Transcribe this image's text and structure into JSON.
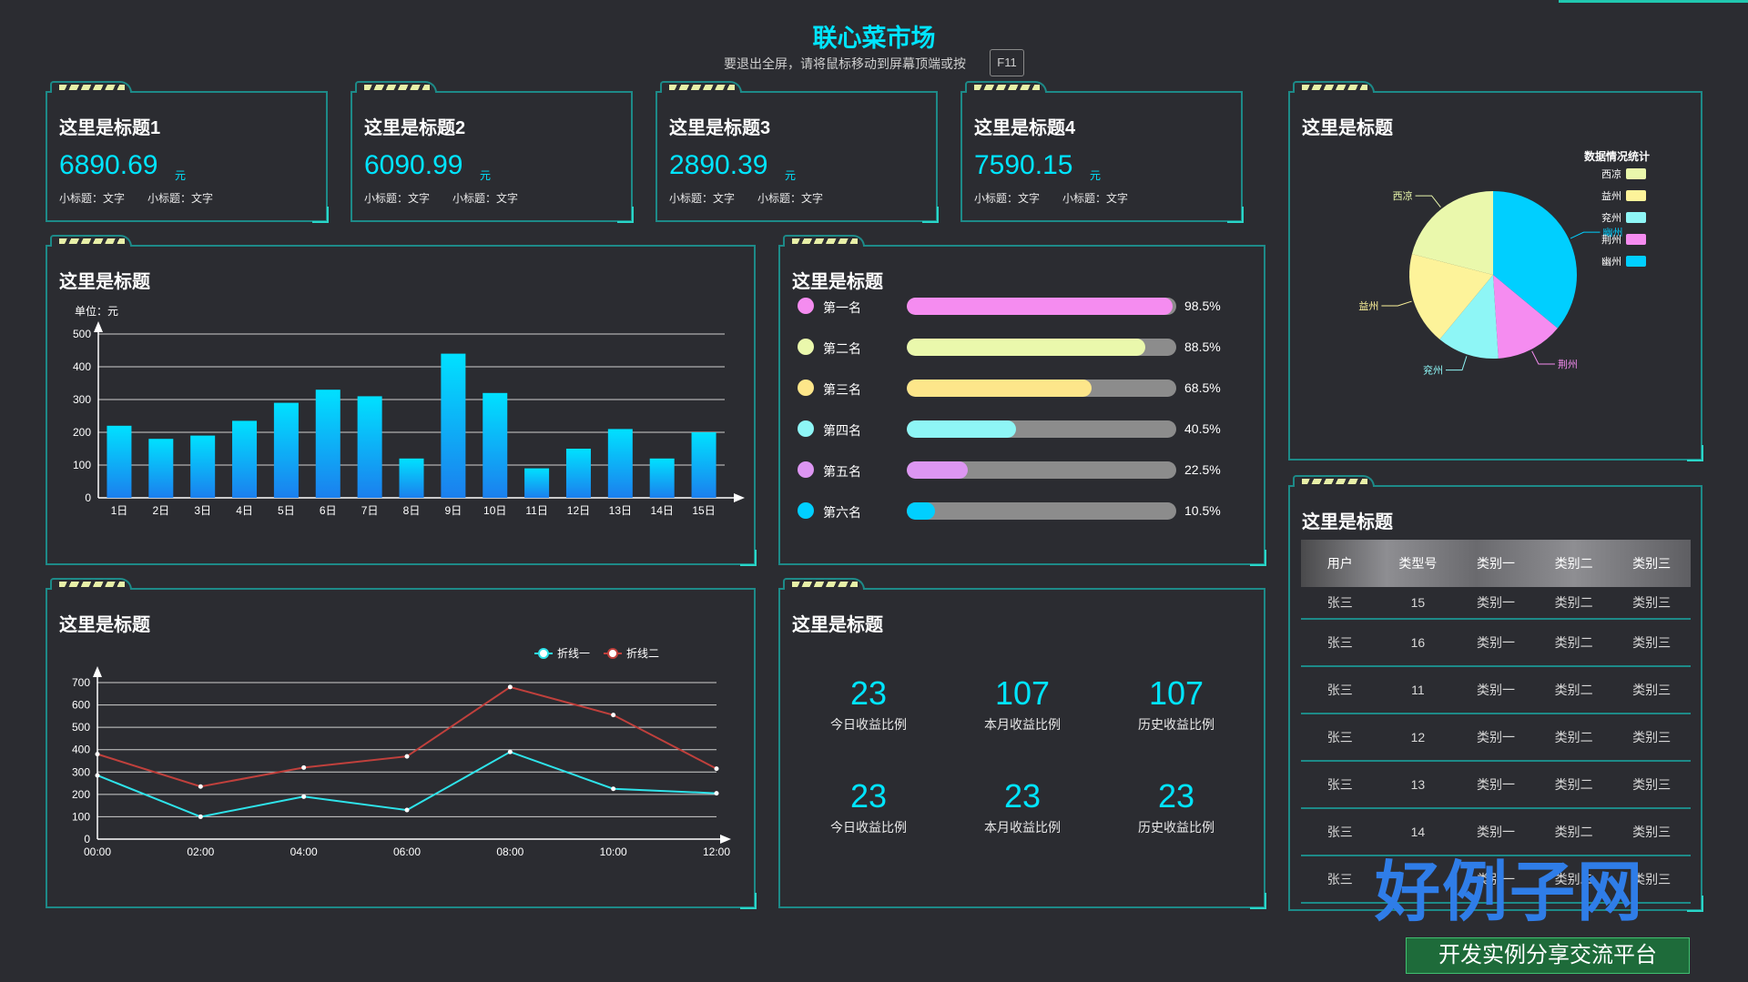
{
  "header": {
    "title": "联心菜市场",
    "hint": "要退出全屏，请将鼠标移动到屏幕顶端或按",
    "key": "F11"
  },
  "kpis": [
    {
      "title": "这里是标题1",
      "value": "6890.69",
      "unit": "元",
      "sub1": "小标题：文字",
      "sub2": "小标题：文字"
    },
    {
      "title": "这里是标题2",
      "value": "6090.99",
      "unit": "元",
      "sub1": "小标题：文字",
      "sub2": "小标题：文字"
    },
    {
      "title": "这里是标题3",
      "value": "2890.39",
      "unit": "元",
      "sub1": "小标题：文字",
      "sub2": "小标题：文字"
    },
    {
      "title": "这里是标题4",
      "value": "7590.15",
      "unit": "元",
      "sub1": "小标题：文字",
      "sub2": "小标题：文字"
    }
  ],
  "pie_panel": {
    "title": "这里是标题",
    "legend_title": "数据情况统计"
  },
  "bar_panel": {
    "title": "这里是标题"
  },
  "rank_panel": {
    "title": "这里是标题",
    "rows": [
      {
        "name": "第一名",
        "pct": "98.5%",
        "value": 98.5,
        "color": "#f58cf0"
      },
      {
        "name": "第二名",
        "pct": "88.5%",
        "value": 88.5,
        "color": "#eaf8ac"
      },
      {
        "name": "第三名",
        "pct": "68.5%",
        "value": 68.5,
        "color": "#fde68a"
      },
      {
        "name": "第四名",
        "pct": "40.5%",
        "value": 40.5,
        "color": "#8ef6f6"
      },
      {
        "name": "第五名",
        "pct": "22.5%",
        "value": 22.5,
        "color": "#dd96f2"
      },
      {
        "name": "第六名",
        "pct": "10.5%",
        "value": 10.5,
        "color": "#00cfff"
      }
    ]
  },
  "line_panel": {
    "title": "这里是标题"
  },
  "stats_panel": {
    "title": "这里是标题",
    "items": [
      {
        "num": "23",
        "label": "今日收益比例"
      },
      {
        "num": "107",
        "label": "本月收益比例"
      },
      {
        "num": "107",
        "label": "历史收益比例"
      },
      {
        "num": "23",
        "label": "今日收益比例"
      },
      {
        "num": "23",
        "label": "本月收益比例"
      },
      {
        "num": "23",
        "label": "历史收益比例"
      }
    ]
  },
  "table_panel": {
    "title": "这里是标题",
    "headers": [
      "用户",
      "类型号",
      "类别一",
      "类别二",
      "类别三"
    ],
    "rows": [
      [
        "张三",
        "15",
        "类别一",
        "类别二",
        "类别三"
      ],
      [
        "张三",
        "16",
        "类别一",
        "类别二",
        "类别三"
      ],
      [
        "张三",
        "11",
        "类别一",
        "类别二",
        "类别三"
      ],
      [
        "张三",
        "12",
        "类别一",
        "类别二",
        "类别三"
      ],
      [
        "张三",
        "13",
        "类别一",
        "类别二",
        "类别三"
      ],
      [
        "张三",
        "14",
        "类别一",
        "类别二",
        "类别三"
      ],
      [
        "张三",
        "",
        "类别一",
        "类别二",
        "类别三"
      ]
    ]
  },
  "watermark": {
    "big": "好例子网",
    "small": "开发实例分享交流平台"
  },
  "colors": {
    "accent": "#00e5ff",
    "border": "#1d8a88",
    "background": "#2b2c31"
  },
  "chart_data": [
    {
      "type": "bar",
      "ylabel": "单位：元",
      "categories": [
        "1日",
        "2日",
        "3日",
        "4日",
        "5日",
        "6日",
        "7日",
        "8日",
        "9日",
        "10日",
        "11日",
        "12日",
        "13日",
        "14日",
        "15日"
      ],
      "values": [
        220,
        180,
        190,
        235,
        290,
        330,
        310,
        120,
        440,
        320,
        90,
        150,
        210,
        120,
        200
      ],
      "yticks": [
        "0",
        "100",
        "200",
        "300",
        "400",
        "500"
      ],
      "ylim": [
        0,
        500
      ],
      "grid": true,
      "colors": [
        "#00e1ff",
        "#1b7fee"
      ]
    },
    {
      "type": "pie",
      "categories": [
        "西凉",
        "益州",
        "兖州",
        "荆州",
        "幽州"
      ],
      "values": [
        21,
        18,
        12,
        13,
        36
      ],
      "colors": [
        "#eaf8ac",
        "#fdf39a",
        "#8ef6f6",
        "#f58cf0",
        "#00cfff"
      ],
      "legend": "right"
    },
    {
      "type": "line",
      "x": [
        "00:00",
        "02:00",
        "04:00",
        "06:00",
        "08:00",
        "10:00",
        "12:00"
      ],
      "yticks": [
        "0",
        "100",
        "200",
        "300",
        "400",
        "500",
        "600",
        "700"
      ],
      "ylim": [
        0,
        700
      ],
      "series": [
        {
          "name": "折线一",
          "values": [
            285,
            100,
            190,
            130,
            390,
            225,
            205
          ],
          "color": "#2ee3ea"
        },
        {
          "name": "折线二",
          "values": [
            380,
            235,
            320,
            370,
            680,
            555,
            315
          ],
          "color": "#c0403c"
        }
      ],
      "legend": "top-right",
      "grid": true
    }
  ]
}
